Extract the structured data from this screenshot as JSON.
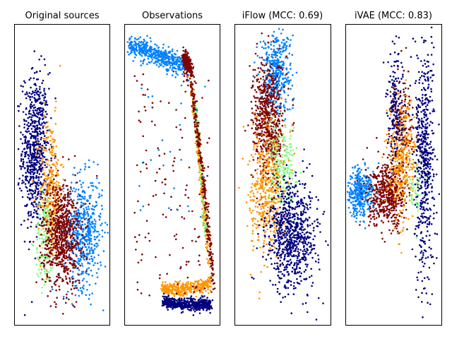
{
  "figure": {
    "titles": [
      "Original sources",
      "Observations",
      "iFlow (MCC: 0.69)",
      "iVAE (MCC: 0.83)"
    ]
  },
  "colors": {
    "navy": "#00007f",
    "blue": "#0080ff",
    "green": "#7fff7f",
    "orange": "#ff9500",
    "maroon": "#7f0000"
  },
  "chart_data": [
    {
      "type": "scatter",
      "title": "Original sources",
      "axes": "hidden",
      "xlim": [
        0,
        1
      ],
      "ylim": [
        0,
        1
      ],
      "clusters": [
        {
          "color": "navy",
          "kind": "blob",
          "cx": 0.22,
          "cy": 0.58,
          "sx": 0.07,
          "sy": 0.13,
          "n": 700
        },
        {
          "color": "orange",
          "kind": "blob",
          "cx": 0.38,
          "cy": 0.45,
          "sx": 0.06,
          "sy": 0.12,
          "n": 320
        },
        {
          "color": "green",
          "kind": "blob",
          "cx": 0.32,
          "cy": 0.28,
          "sx": 0.05,
          "sy": 0.08,
          "n": 140
        },
        {
          "color": "blue",
          "kind": "blob",
          "cx": 0.72,
          "cy": 0.31,
          "sx": 0.1,
          "sy": 0.09,
          "n": 550
        },
        {
          "color": "maroon",
          "kind": "blob",
          "cx": 0.5,
          "cy": 0.3,
          "sx": 0.1,
          "sy": 0.09,
          "n": 750
        }
      ]
    },
    {
      "type": "scatter",
      "title": "Observations",
      "axes": "hidden",
      "xlim": [
        0,
        1
      ],
      "ylim": [
        0,
        1
      ],
      "clusters": [
        {
          "color": "blue",
          "kind": "path",
          "pts": [
            [
              0.05,
              0.93
            ],
            [
              0.3,
              0.9
            ],
            [
              0.55,
              0.87
            ],
            [
              0.68,
              0.86
            ]
          ],
          "w": 0.035,
          "n": 520
        },
        {
          "color": "maroon",
          "kind": "path",
          "pts": [
            [
              0.62,
              0.89
            ],
            [
              0.7,
              0.84
            ]
          ],
          "w": 0.03,
          "n": 200
        },
        {
          "color": "green",
          "kind": "path",
          "pts": [
            [
              0.74,
              0.73
            ],
            [
              0.8,
              0.5
            ],
            [
              0.85,
              0.3
            ]
          ],
          "w": 0.02,
          "n": 180
        },
        {
          "color": "orange",
          "kind": "path",
          "pts": [
            [
              0.68,
              0.82
            ],
            [
              0.76,
              0.62
            ],
            [
              0.84,
              0.35
            ],
            [
              0.9,
              0.15
            ]
          ],
          "w": 0.02,
          "n": 170
        },
        {
          "color": "maroon",
          "kind": "path",
          "pts": [
            [
              0.7,
              0.8
            ],
            [
              0.8,
              0.55
            ],
            [
              0.88,
              0.3
            ],
            [
              0.93,
              0.12
            ]
          ],
          "w": 0.02,
          "n": 260
        },
        {
          "color": "orange",
          "kind": "path",
          "pts": [
            [
              0.4,
              0.12
            ],
            [
              0.65,
              0.12
            ],
            [
              0.9,
              0.14
            ]
          ],
          "w": 0.022,
          "n": 360
        },
        {
          "color": "navy",
          "kind": "path",
          "pts": [
            [
              0.4,
              0.08
            ],
            [
              0.6,
              0.07
            ],
            [
              0.9,
              0.07
            ]
          ],
          "w": 0.02,
          "n": 520
        },
        {
          "color": "maroon",
          "kind": "uniform",
          "xr": [
            0.1,
            0.9
          ],
          "yr": [
            0.1,
            0.85
          ],
          "n": 130
        },
        {
          "color": "blue",
          "kind": "uniform",
          "xr": [
            0.15,
            0.85
          ],
          "yr": [
            0.3,
            0.85
          ],
          "n": 25
        }
      ]
    },
    {
      "type": "scatter",
      "title": "iFlow (MCC: 0.69)",
      "axes": "hidden",
      "xlim": [
        0,
        1
      ],
      "ylim": [
        0,
        1
      ],
      "clusters": [
        {
          "color": "blue",
          "kind": "blob",
          "cx": 0.43,
          "cy": 0.84,
          "sx": 0.08,
          "sy": 0.07,
          "n": 420
        },
        {
          "color": "maroon",
          "kind": "blob",
          "cx": 0.35,
          "cy": 0.68,
          "sx": 0.08,
          "sy": 0.1,
          "n": 650
        },
        {
          "color": "green",
          "kind": "blob",
          "cx": 0.5,
          "cy": 0.52,
          "sx": 0.07,
          "sy": 0.07,
          "n": 220
        },
        {
          "color": "orange",
          "kind": "blob",
          "cx": 0.34,
          "cy": 0.45,
          "sx": 0.09,
          "sy": 0.11,
          "n": 450
        },
        {
          "color": "navy",
          "kind": "blob",
          "cx": 0.6,
          "cy": 0.3,
          "sx": 0.13,
          "sy": 0.09,
          "n": 780
        }
      ]
    },
    {
      "type": "scatter",
      "title": "iVAE (MCC: 0.83)",
      "axes": "hidden",
      "xlim": [
        0,
        1
      ],
      "ylim": [
        0,
        1
      ],
      "clusters": [
        {
          "color": "blue",
          "kind": "blob",
          "cx": 0.15,
          "cy": 0.44,
          "sx": 0.07,
          "sy": 0.04,
          "n": 360
        },
        {
          "color": "maroon",
          "kind": "blob",
          "cx": 0.44,
          "cy": 0.43,
          "sx": 0.1,
          "sy": 0.05,
          "n": 520
        },
        {
          "color": "maroon",
          "kind": "blob",
          "cx": 0.58,
          "cy": 0.66,
          "sx": 0.06,
          "sy": 0.08,
          "n": 200
        },
        {
          "color": "orange",
          "kind": "blob",
          "cx": 0.58,
          "cy": 0.55,
          "sx": 0.07,
          "sy": 0.1,
          "n": 360
        },
        {
          "color": "navy",
          "kind": "blob",
          "cx": 0.82,
          "cy": 0.55,
          "sx": 0.05,
          "sy": 0.17,
          "n": 460
        },
        {
          "color": "navy",
          "kind": "blob",
          "cx": 0.52,
          "cy": 0.73,
          "sx": 0.04,
          "sy": 0.1,
          "n": 170
        },
        {
          "color": "green",
          "kind": "blob",
          "cx": 0.72,
          "cy": 0.45,
          "sx": 0.04,
          "sy": 0.04,
          "n": 45
        },
        {
          "color": "navy",
          "kind": "uniform",
          "xr": [
            0.72,
            0.92
          ],
          "yr": [
            0.05,
            0.95
          ],
          "n": 90
        }
      ]
    }
  ]
}
